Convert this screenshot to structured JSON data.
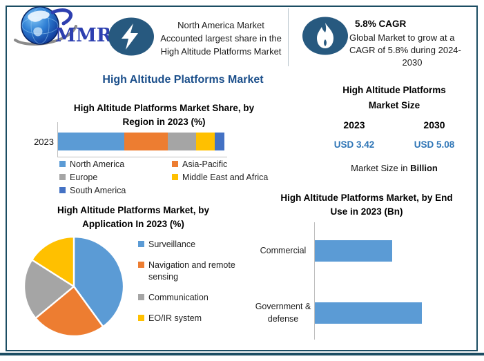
{
  "brand": {
    "logo_text": "MMR"
  },
  "header": {
    "callout1": {
      "icon": "lightning-icon",
      "line1": "North America Market",
      "line2": "Accounted largest share in the",
      "line3": "High Altitude Platforms Market"
    },
    "callout2": {
      "icon": "flame-icon",
      "title": "5.8% CAGR",
      "line1": "Global Market to grow at a",
      "line2": "CAGR of 5.8% during 2024-",
      "line3": "2030"
    }
  },
  "main_title": "High Altitude Platforms Market",
  "market_size": {
    "title_line1": "High Altitude Platforms",
    "title_line2": "Market Size",
    "years": [
      "2023",
      "2030"
    ],
    "values": [
      "USD 3.42",
      "USD 5.08"
    ],
    "note_prefix": "Market Size in ",
    "note_bold": "Billion"
  },
  "colors": {
    "accent_navy": "#1a4e8a",
    "value_blue": "#2e75b6",
    "icon_circle": "#27597f",
    "border": "#1c4d63",
    "series_blue": "#5B9BD5",
    "series_orange": "#ED7D31",
    "series_gray": "#A5A5A5",
    "series_yellow": "#FFC000",
    "series_darkblue": "#4472C4"
  },
  "chart_data": [
    {
      "id": "region-share",
      "type": "bar",
      "orientation": "horizontal-stacked",
      "title": "High Altitude Platforms Market Share, by Region in 2023 (%)",
      "title_line1": "High Altitude Platforms Market Share, by",
      "title_line2": "Region in 2023 (%)",
      "categories": [
        "2023"
      ],
      "unit": "%",
      "xlim": [
        0,
        100
      ],
      "legend_position": "bottom",
      "series": [
        {
          "name": "North America",
          "value": 40,
          "color": "#5B9BD5"
        },
        {
          "name": "Asia-Pacific",
          "value": 26,
          "color": "#ED7D31"
        },
        {
          "name": "Europe",
          "value": 17,
          "color": "#A5A5A5"
        },
        {
          "name": "Middle East and Africa",
          "value": 11,
          "color": "#FFC000"
        },
        {
          "name": "South America",
          "value": 6,
          "color": "#4472C4"
        }
      ]
    },
    {
      "id": "application-share",
      "type": "pie",
      "title": "High Altitude Platforms Market, by Application In 2023 (%)",
      "title_line1": "High Altitude Platforms Market, by",
      "title_line2": "Application In 2023 (%)",
      "unit": "%",
      "legend_position": "right",
      "slices": [
        {
          "name": "Surveillance",
          "value": 40,
          "color": "#5B9BD5"
        },
        {
          "name": "Navigation and remote sensing",
          "value": 24,
          "color": "#ED7D31"
        },
        {
          "name": "Communication",
          "value": 20,
          "color": "#A5A5A5"
        },
        {
          "name": "EO/IR system",
          "value": 16,
          "color": "#FFC000"
        }
      ]
    },
    {
      "id": "end-use",
      "type": "bar",
      "orientation": "horizontal",
      "title": "High Altitude Platforms Market, by End Use in 2023 (Bn)",
      "title_line1": "High Altitude Platforms Market, by End",
      "title_line2": "Use in 2023 (Bn)",
      "categories": [
        "Commercial",
        "Government & defense"
      ],
      "values": [
        1.43,
        1.97
      ],
      "unit": "Bn",
      "xlim": [
        0,
        2.9
      ],
      "color": "#5B9BD5"
    }
  ]
}
